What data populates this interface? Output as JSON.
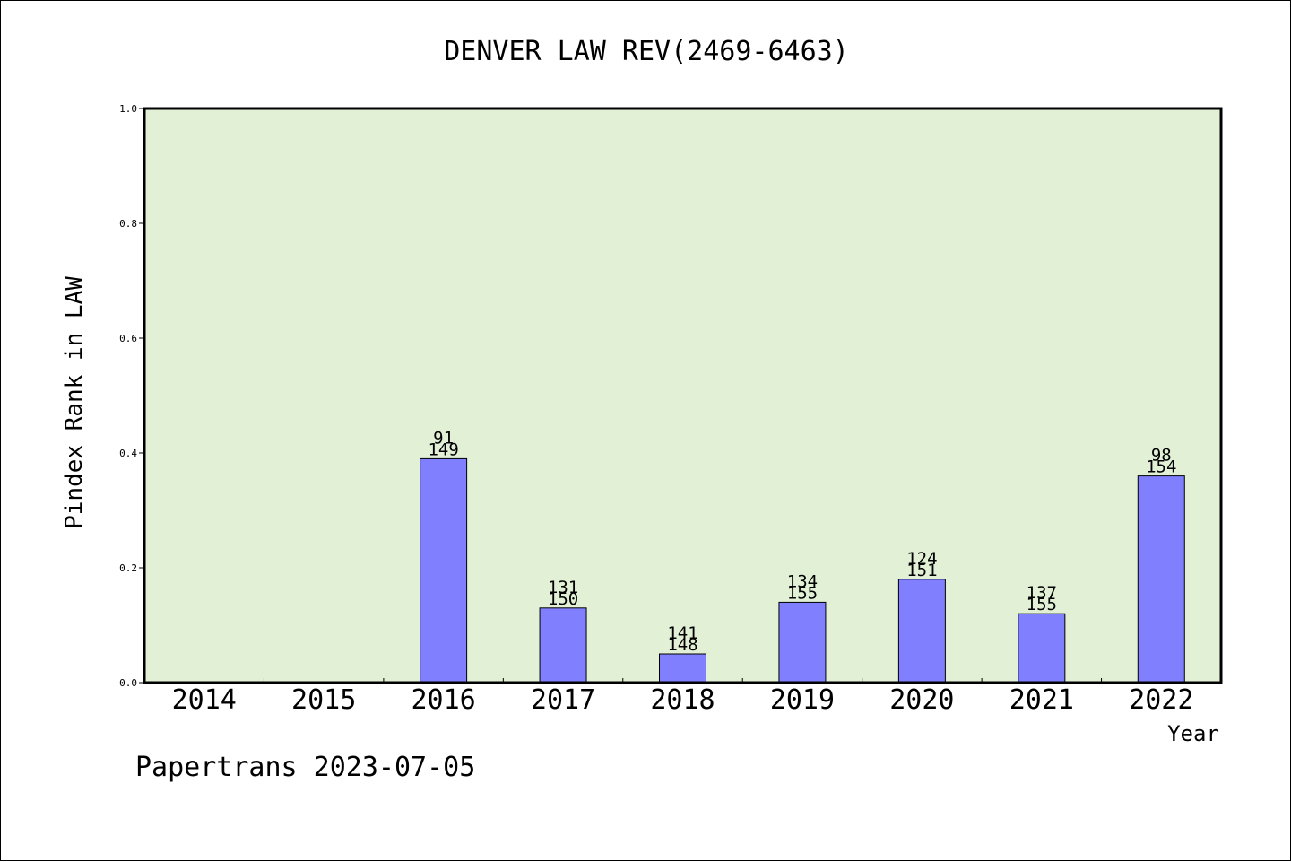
{
  "chart_data": {
    "type": "bar",
    "title": "DENVER LAW REV(2469-6463)",
    "xlabel": "Year",
    "ylabel": "Pindex Rank in LAW",
    "footer": "Papertrans 2023-07-05",
    "categories": [
      "2014",
      "2015",
      "2016",
      "2017",
      "2018",
      "2019",
      "2020",
      "2021",
      "2022"
    ],
    "values": [
      0,
      0,
      0.39,
      0.13,
      0.05,
      0.14,
      0.18,
      0.12,
      0.36
    ],
    "rank_labels": [
      "",
      "",
      "91",
      "131",
      "141",
      "134",
      "124",
      "137",
      "98"
    ],
    "total_labels": [
      "",
      "",
      "149",
      "150",
      "148",
      "155",
      "151",
      "155",
      "154"
    ],
    "ylim": [
      0,
      1.0
    ],
    "yticks": [
      "0.0",
      "0.2",
      "0.4",
      "0.6",
      "0.8",
      "1.0"
    ],
    "grid": false,
    "colors": {
      "bar": "#8080ff",
      "plot_background": "#e2f0d6",
      "axis": "#000000"
    }
  }
}
